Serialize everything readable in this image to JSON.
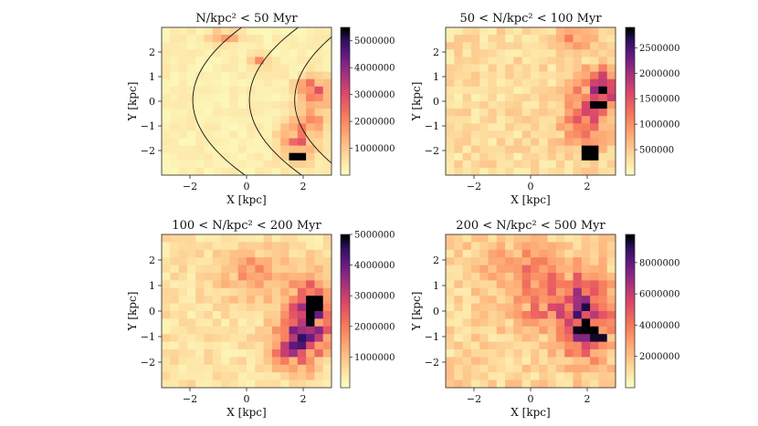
{
  "chart_data": [
    {
      "type": "heatmap",
      "title": "N/kpc² < 50 Myr",
      "xlabel": "X [kpc]",
      "ylabel": "Y [kpc]",
      "xlim": [
        -3,
        3
      ],
      "ylim": [
        -3,
        3
      ],
      "x_ticks": [
        "−2",
        "0",
        "2"
      ],
      "y_ticks": [
        "2",
        "1",
        "0",
        "−1",
        "−2"
      ],
      "colorbar": {
        "min": 0,
        "max": 5500000,
        "ticks": [
          "1000000",
          "2000000",
          "3000000",
          "4000000",
          "5000000"
        ]
      },
      "grid_size": 20,
      "overlay_arcs": true,
      "hotspots": [
        {
          "x": 1.8,
          "y": -2.2,
          "value": 5500000
        }
      ],
      "features": [
        {
          "x": 1.8,
          "y": -1.5,
          "sx": 0.6,
          "sy": 0.9,
          "value": 2000000
        },
        {
          "x": 2.4,
          "y": 0.5,
          "sx": 0.6,
          "sy": 0.5,
          "value": 2300000
        },
        {
          "x": 2.6,
          "y": -0.6,
          "sx": 0.5,
          "sy": 0.6,
          "value": 1500000
        },
        {
          "x": -0.8,
          "y": 2.6,
          "sx": 0.6,
          "sy": 0.3,
          "value": 1200000
        },
        {
          "x": 0.5,
          "y": 1.6,
          "sx": 0.3,
          "sy": 0.3,
          "value": 1500000
        }
      ],
      "background_value": 250000
    },
    {
      "type": "heatmap",
      "title": "50 < N/kpc² < 100 Myr",
      "xlabel": "X [kpc]",
      "ylabel": "Y [kpc]",
      "xlim": [
        -3,
        3
      ],
      "ylim": [
        -3,
        3
      ],
      "x_ticks": [
        "−2",
        "0",
        "2"
      ],
      "y_ticks": [
        "2",
        "1",
        "0",
        "−1",
        "−2"
      ],
      "colorbar": {
        "min": 0,
        "max": 2900000,
        "ticks": [
          "500000",
          "1000000",
          "1500000",
          "2000000",
          "2500000"
        ]
      },
      "grid_size": 20,
      "overlay_arcs": false,
      "hotspots": [
        {
          "x": 2.0,
          "y": -2.1,
          "value": 2900000
        },
        {
          "x": 2.5,
          "y": -0.2,
          "value": 2900000
        }
      ],
      "features": [
        {
          "x": 2.0,
          "y": -0.5,
          "sx": 0.8,
          "sy": 1.4,
          "value": 1100000
        },
        {
          "x": 2.6,
          "y": 0.6,
          "sx": 0.5,
          "sy": 0.6,
          "value": 1800000
        },
        {
          "x": 1.5,
          "y": 2.5,
          "sx": 0.6,
          "sy": 0.4,
          "value": 700000
        }
      ],
      "background_value": 300000
    },
    {
      "type": "heatmap",
      "title": "100 < N/kpc² < 200 Myr",
      "xlabel": "X [kpc]",
      "ylabel": "Y [kpc]",
      "xlim": [
        -3,
        3
      ],
      "ylim": [
        -3,
        3
      ],
      "x_ticks": [
        "−2",
        "0",
        "2"
      ],
      "y_ticks": [
        "2",
        "1",
        "0",
        "−1",
        "−2"
      ],
      "colorbar": {
        "min": 0,
        "max": 5000000,
        "ticks": [
          "1000000",
          "2000000",
          "3000000",
          "4000000",
          "5000000"
        ]
      },
      "grid_size": 20,
      "overlay_arcs": false,
      "hotspots": [
        {
          "x": 2.5,
          "y": 0.3,
          "value": 5000000
        }
      ],
      "features": [
        {
          "x": 2.2,
          "y": -0.2,
          "sx": 0.8,
          "sy": 1.3,
          "value": 3400000
        },
        {
          "x": 1.6,
          "y": -1.5,
          "sx": 0.7,
          "sy": 0.8,
          "value": 2200000
        },
        {
          "x": 0.2,
          "y": 1.5,
          "sx": 1.2,
          "sy": 1.0,
          "value": 900000
        }
      ],
      "background_value": 450000
    },
    {
      "type": "heatmap",
      "title": "200 < N/kpc² < 500 Myr",
      "xlabel": "X [kpc]",
      "ylabel": "Y [kpc]",
      "xlim": [
        -3,
        3
      ],
      "ylim": [
        -3,
        3
      ],
      "x_ticks": [
        "−2",
        "0",
        "2"
      ],
      "y_ticks": [
        "2",
        "1",
        "0",
        "−1",
        "−2"
      ],
      "colorbar": {
        "min": 0,
        "max": 9800000,
        "ticks": [
          "2000000",
          "4000000",
          "6000000",
          "8000000"
        ]
      },
      "grid_size": 20,
      "overlay_arcs": false,
      "hotspots": [
        {
          "x": 2.2,
          "y": -0.8,
          "value": 9800000
        },
        {
          "x": 2.4,
          "y": -1.0,
          "value": 9500000
        }
      ],
      "features": [
        {
          "x": 2.0,
          "y": -0.4,
          "sx": 0.8,
          "sy": 1.5,
          "value": 6500000
        },
        {
          "x": 0.6,
          "y": 0.4,
          "sx": 1.2,
          "sy": 1.4,
          "value": 3000000
        },
        {
          "x": -0.5,
          "y": 1.8,
          "sx": 1.2,
          "sy": 0.8,
          "value": 1800000
        }
      ],
      "background_value": 1200000
    }
  ]
}
